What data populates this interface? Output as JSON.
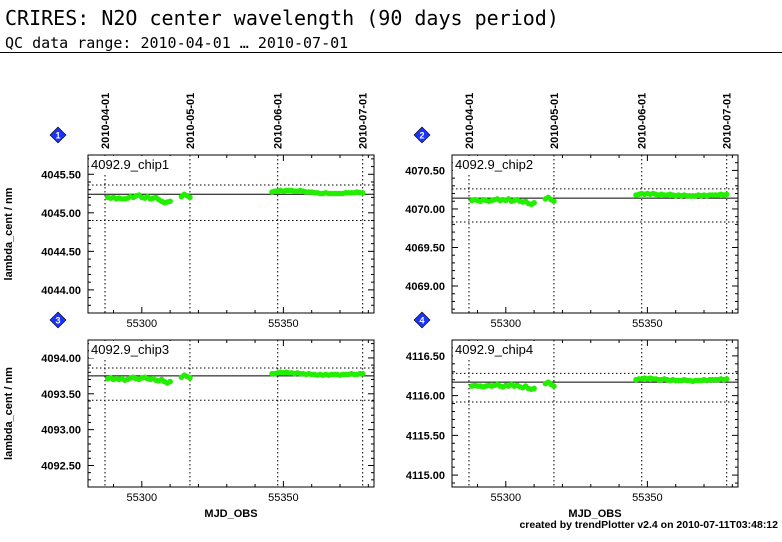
{
  "header": {
    "title": "CRIRES: N2O center wavelength (90 days period)",
    "subtitle": "QC data range: 2010-04-01 … 2010-07-01"
  },
  "footer": {
    "credit": "created by trendPlotter v2.4 on 2010-07-11T03:48:12"
  },
  "colors": {
    "points": "#22ee00",
    "badge": "#1a33ff",
    "axes": "#000000"
  },
  "chart_data": [
    {
      "type": "scatter",
      "panel_badge": "1",
      "panel_label": "4092.9_chip1",
      "ylabel": "lambda_cent / nm",
      "xlabel": "",
      "top_tick_labels": [
        "2010-04-01",
        "2010-05-01",
        "2010-06-01",
        "2010-07-01"
      ],
      "top_tick_mjd": [
        55287,
        55317,
        55348,
        55378
      ],
      "xlim": [
        55281,
        55382
      ],
      "x_ticks": [
        55300,
        55350
      ],
      "ylim": [
        4043.7,
        4045.75
      ],
      "y_ticks": [
        4044.0,
        4044.5,
        4045.0,
        4045.5
      ],
      "y_tick_labels": [
        "4044.00",
        "4044.50",
        "4045.00",
        "4045.50"
      ],
      "reference_line": 4045.24,
      "threshold_lines": [
        4045.36,
        4044.9
      ],
      "x": [
        55288,
        55289,
        55290,
        55291,
        55292,
        55293,
        55294,
        55295,
        55296,
        55297,
        55298,
        55299,
        55300,
        55301,
        55302,
        55303,
        55304,
        55305,
        55306,
        55307,
        55308,
        55309,
        55310,
        55314,
        55315,
        55316,
        55317,
        55346,
        55347,
        55348,
        55349,
        55350,
        55351,
        55352,
        55353,
        55354,
        55355,
        55356,
        55357,
        55358,
        55359,
        55360,
        55361,
        55362,
        55363,
        55364,
        55365,
        55366,
        55367,
        55368,
        55369,
        55370,
        55371,
        55372,
        55373,
        55374,
        55375,
        55376,
        55377,
        55378
      ],
      "y": [
        4045.2,
        4045.19,
        4045.2,
        4045.18,
        4045.19,
        4045.18,
        4045.18,
        4045.19,
        4045.21,
        4045.2,
        4045.22,
        4045.23,
        4045.2,
        4045.19,
        4045.21,
        4045.18,
        4045.19,
        4045.2,
        4045.17,
        4045.15,
        4045.13,
        4045.14,
        4045.15,
        4045.21,
        4045.24,
        4045.22,
        4045.2,
        4045.27,
        4045.28,
        4045.28,
        4045.29,
        4045.28,
        4045.29,
        4045.29,
        4045.29,
        4045.28,
        4045.28,
        4045.29,
        4045.28,
        4045.27,
        4045.27,
        4045.27,
        4045.26,
        4045.26,
        4045.25,
        4045.25,
        4045.26,
        4045.25,
        4045.25,
        4045.25,
        4045.25,
        4045.25,
        4045.25,
        4045.26,
        4045.26,
        4045.26,
        4045.26,
        4045.27,
        4045.26,
        4045.26
      ]
    },
    {
      "type": "scatter",
      "panel_badge": "2",
      "panel_label": "4092.9_chip2",
      "ylabel": "",
      "xlabel": "",
      "top_tick_labels": [
        "2010-04-01",
        "2010-05-01",
        "2010-06-01",
        "2010-07-01"
      ],
      "top_tick_mjd": [
        55287,
        55317,
        55348,
        55378
      ],
      "xlim": [
        55281,
        55382
      ],
      "x_ticks": [
        55300,
        55350
      ],
      "ylim": [
        4068.65,
        4070.7
      ],
      "y_ticks": [
        4069.0,
        4069.5,
        4070.0,
        4070.5
      ],
      "y_tick_labels": [
        "4069.00",
        "4069.50",
        "4070.00",
        "4070.50"
      ],
      "reference_line": 4070.14,
      "threshold_lines": [
        4070.26,
        4069.83
      ],
      "x": [
        55288,
        55289,
        55290,
        55291,
        55292,
        55293,
        55294,
        55295,
        55296,
        55297,
        55298,
        55299,
        55300,
        55301,
        55302,
        55303,
        55304,
        55305,
        55306,
        55307,
        55308,
        55309,
        55310,
        55314,
        55315,
        55316,
        55317,
        55346,
        55347,
        55348,
        55349,
        55350,
        55351,
        55352,
        55353,
        55354,
        55355,
        55356,
        55357,
        55358,
        55359,
        55360,
        55361,
        55362,
        55363,
        55364,
        55365,
        55366,
        55367,
        55368,
        55369,
        55370,
        55371,
        55372,
        55373,
        55374,
        55375,
        55376,
        55377,
        55378
      ],
      "y": [
        4070.11,
        4070.12,
        4070.11,
        4070.1,
        4070.12,
        4070.11,
        4070.1,
        4070.11,
        4070.12,
        4070.13,
        4070.11,
        4070.12,
        4070.11,
        4070.13,
        4070.1,
        4070.11,
        4070.12,
        4070.1,
        4070.09,
        4070.1,
        4070.07,
        4070.06,
        4070.08,
        4070.13,
        4070.15,
        4070.12,
        4070.1,
        4070.18,
        4070.19,
        4070.2,
        4070.19,
        4070.2,
        4070.19,
        4070.2,
        4070.19,
        4070.18,
        4070.19,
        4070.18,
        4070.18,
        4070.19,
        4070.18,
        4070.17,
        4070.18,
        4070.17,
        4070.18,
        4070.17,
        4070.17,
        4070.17,
        4070.17,
        4070.18,
        4070.17,
        4070.18,
        4070.17,
        4070.18,
        4070.18,
        4070.18,
        4070.18,
        4070.19,
        4070.18,
        4070.19
      ]
    },
    {
      "type": "scatter",
      "panel_badge": "3",
      "panel_label": "4092.9_chip3",
      "ylabel": "lambda_cent / nm",
      "xlabel": "MJD_OBS",
      "top_tick_labels": [],
      "top_tick_mjd": [
        55287,
        55317,
        55348,
        55378
      ],
      "xlim": [
        55281,
        55382
      ],
      "x_ticks": [
        55300,
        55350
      ],
      "ylim": [
        4092.2,
        4094.25
      ],
      "y_ticks": [
        4092.5,
        4093.0,
        4093.5,
        4094.0
      ],
      "y_tick_labels": [
        "4092.50",
        "4093.00",
        "4093.50",
        "4094.00"
      ],
      "reference_line": 4093.75,
      "threshold_lines": [
        4093.86,
        4093.41
      ],
      "x": [
        55288,
        55289,
        55290,
        55291,
        55292,
        55293,
        55294,
        55295,
        55296,
        55297,
        55298,
        55299,
        55300,
        55301,
        55302,
        55303,
        55304,
        55305,
        55306,
        55307,
        55308,
        55309,
        55310,
        55314,
        55315,
        55316,
        55317,
        55346,
        55347,
        55348,
        55349,
        55350,
        55351,
        55352,
        55353,
        55354,
        55355,
        55356,
        55357,
        55358,
        55359,
        55360,
        55361,
        55362,
        55363,
        55364,
        55365,
        55366,
        55367,
        55368,
        55369,
        55370,
        55371,
        55372,
        55373,
        55374,
        55375,
        55376,
        55377,
        55378
      ],
      "y": [
        4093.71,
        4093.72,
        4093.7,
        4093.71,
        4093.7,
        4093.71,
        4093.69,
        4093.7,
        4093.72,
        4093.73,
        4093.71,
        4093.7,
        4093.72,
        4093.73,
        4093.71,
        4093.7,
        4093.71,
        4093.69,
        4093.68,
        4093.7,
        4093.67,
        4093.65,
        4093.67,
        4093.73,
        4093.76,
        4093.74,
        4093.72,
        4093.78,
        4093.78,
        4093.79,
        4093.8,
        4093.79,
        4093.8,
        4093.79,
        4093.79,
        4093.78,
        4093.79,
        4093.78,
        4093.78,
        4093.77,
        4093.78,
        4093.77,
        4093.77,
        4093.76,
        4093.77,
        4093.76,
        4093.77,
        4093.76,
        4093.77,
        4093.77,
        4093.77,
        4093.76,
        4093.77,
        4093.77,
        4093.77,
        4093.78,
        4093.77,
        4093.77,
        4093.78,
        4093.78
      ]
    },
    {
      "type": "scatter",
      "panel_badge": "4",
      "panel_label": "4092.9_chip4",
      "ylabel": "",
      "xlabel": "MJD_OBS",
      "top_tick_labels": [],
      "top_tick_mjd": [
        55287,
        55317,
        55348,
        55378
      ],
      "xlim": [
        55281,
        55382
      ],
      "x_ticks": [
        55300,
        55350
      ],
      "ylim": [
        4114.85,
        4116.7
      ],
      "y_ticks": [
        4115.0,
        4115.5,
        4116.0,
        4116.5
      ],
      "y_tick_labels": [
        "4115.00",
        "4115.50",
        "4116.00",
        "4116.50"
      ],
      "reference_line": 4116.17,
      "threshold_lines": [
        4116.28,
        4115.92
      ],
      "x": [
        55288,
        55289,
        55290,
        55291,
        55292,
        55293,
        55294,
        55295,
        55296,
        55297,
        55298,
        55299,
        55300,
        55301,
        55302,
        55303,
        55304,
        55305,
        55306,
        55307,
        55308,
        55309,
        55310,
        55314,
        55315,
        55316,
        55317,
        55346,
        55347,
        55348,
        55349,
        55350,
        55351,
        55352,
        55353,
        55354,
        55355,
        55356,
        55357,
        55358,
        55359,
        55360,
        55361,
        55362,
        55363,
        55364,
        55365,
        55366,
        55367,
        55368,
        55369,
        55370,
        55371,
        55372,
        55373,
        55374,
        55375,
        55376,
        55377,
        55378
      ],
      "y": [
        4116.12,
        4116.13,
        4116.12,
        4116.12,
        4116.11,
        4116.12,
        4116.13,
        4116.12,
        4116.13,
        4116.14,
        4116.12,
        4116.11,
        4116.13,
        4116.12,
        4116.14,
        4116.12,
        4116.13,
        4116.11,
        4116.1,
        4116.12,
        4116.09,
        4116.08,
        4116.09,
        4116.15,
        4116.17,
        4116.14,
        4116.12,
        4116.2,
        4116.21,
        4116.21,
        4116.22,
        4116.21,
        4116.22,
        4116.21,
        4116.21,
        4116.2,
        4116.2,
        4116.21,
        4116.2,
        4116.19,
        4116.2,
        4116.19,
        4116.19,
        4116.19,
        4116.2,
        4116.19,
        4116.19,
        4116.18,
        4116.19,
        4116.19,
        4116.19,
        4116.2,
        4116.19,
        4116.2,
        4116.2,
        4116.2,
        4116.2,
        4116.21,
        4116.2,
        4116.21
      ]
    }
  ]
}
